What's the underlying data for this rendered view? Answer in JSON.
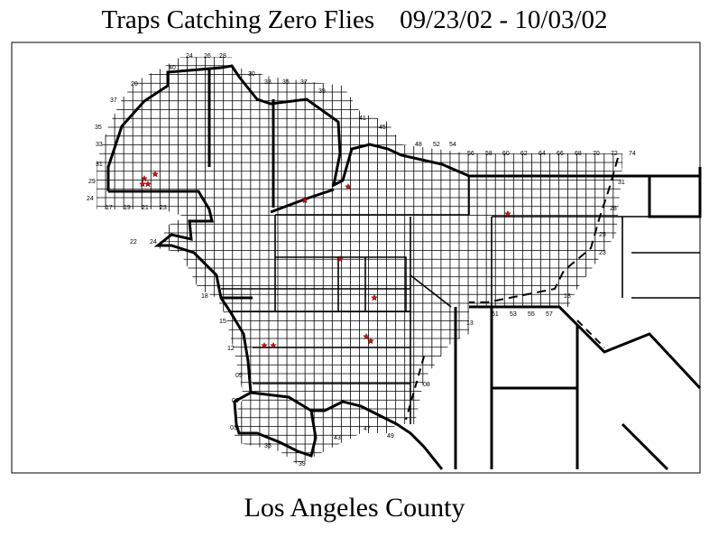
{
  "header": {
    "title": "Traps Catching Zero Flies",
    "date_range": "09/23/02 - 10/03/02"
  },
  "footer": {
    "region": "Los Angeles County"
  },
  "map": {
    "marker_icon": "star-icon",
    "marker_color": "#ff0000",
    "line_color": "#000000",
    "grid_labels": {
      "top": [
        "24",
        "26",
        "28",
        "30",
        "33",
        "35",
        "37",
        "39",
        "41",
        "45",
        "48",
        "52",
        "54",
        "56",
        "58",
        "60",
        "62",
        "64",
        "66",
        "68",
        "70",
        "72",
        "74"
      ],
      "left": [
        "40",
        "20",
        "37",
        "35",
        "33",
        "31",
        "29",
        "24",
        "22",
        "24",
        "18",
        "15",
        "12",
        "09",
        "05",
        "03"
      ],
      "bottom": [
        "17",
        "19",
        "21",
        "23",
        "35",
        "39",
        "43",
        "47",
        "49",
        "51",
        "53",
        "55",
        "57"
      ],
      "right": [
        "31",
        "28",
        "25",
        "23",
        "18",
        "13",
        "08"
      ]
    }
  }
}
